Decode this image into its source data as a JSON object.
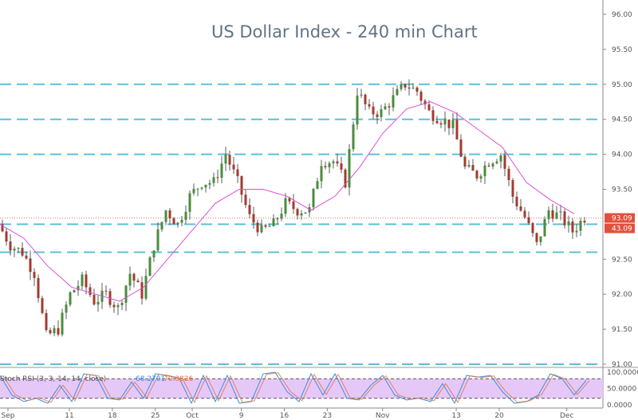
{
  "chart_data": {
    "type": "candlestick",
    "title": "US Dollar Index - 240 min Chart",
    "ylim": [
      90.9,
      96.05
    ],
    "y_ticks": [
      "96.00",
      "95.50",
      "95.00",
      "94.50",
      "94.00",
      "93.50",
      "92.50",
      "92.00",
      "91.50",
      "91.00"
    ],
    "y_tick_values": [
      96,
      95.5,
      95,
      94.5,
      94,
      93.5,
      92.5,
      92,
      91.5,
      91
    ],
    "x_ticks": [
      "Sep",
      "11",
      "18",
      "25",
      "Oct",
      "9",
      "16",
      "23",
      "Nov",
      "13",
      "20",
      "Dec"
    ],
    "x_tick_days": [
      0,
      10,
      17,
      24,
      30,
      38,
      45,
      52,
      61,
      73,
      80,
      91
    ],
    "horizontal_levels": [
      95.0,
      94.5,
      94.0,
      93.0,
      92.6,
      91.0
    ],
    "last_price_label": "93.09",
    "second_label": "43.09",
    "last_price": 93.09,
    "close_path": [
      93.0,
      92.7,
      92.6,
      92.3,
      91.4,
      91.5,
      92.0,
      92.2,
      91.9,
      92.0,
      91.8,
      92.3,
      92.0,
      92.7,
      93.2,
      93.0,
      93.4,
      93.6,
      93.6,
      94.0,
      93.6,
      93.1,
      92.9,
      93.0,
      93.3,
      93.2,
      93.2,
      93.9,
      93.9,
      93.6,
      94.9,
      94.6,
      94.6,
      94.8,
      95.0,
      94.9,
      94.6,
      94.5,
      94.4,
      93.8,
      93.7,
      93.9,
      94.0,
      93.4,
      93.1,
      92.7,
      93.2,
      93.1,
      92.9,
      93.1
    ],
    "moving_average": [
      93.0,
      92.8,
      92.4,
      92.1,
      92.0,
      91.9,
      92.1,
      92.5,
      92.9,
      93.3,
      93.5,
      93.5,
      93.4,
      93.2,
      93.4,
      93.8,
      94.3,
      94.65,
      94.75,
      94.6,
      94.35,
      94.1,
      93.6,
      93.35,
      93.15
    ],
    "indicator": {
      "label": "Stoch RSI (3, 3, 14, 14, close)",
      "k_value": "68.2701",
      "d_value": "70.3826",
      "y_ticks": [
        "100.0000",
        "50.0000",
        "0.0000"
      ],
      "bands": [
        20,
        80
      ],
      "values": [
        90,
        30,
        10,
        20,
        5,
        60,
        10,
        95,
        90,
        20,
        15,
        70,
        20,
        95,
        90,
        80,
        5,
        90,
        10,
        90,
        5,
        10,
        95,
        100,
        40,
        10,
        95,
        30,
        95,
        20,
        15,
        60,
        90,
        30,
        15,
        20,
        10,
        65,
        5,
        90,
        85,
        90,
        40,
        5,
        10,
        30,
        95,
        80,
        30,
        75
      ]
    },
    "colors": {
      "up": "#4a8c3c",
      "down": "#a33a2e",
      "ma": "#d94fd4",
      "level": "#5bc0d8",
      "k": "#3a8ee0",
      "d": "#e0703a",
      "band": "#e6c8f8",
      "price_label": "#e0503c"
    }
  }
}
